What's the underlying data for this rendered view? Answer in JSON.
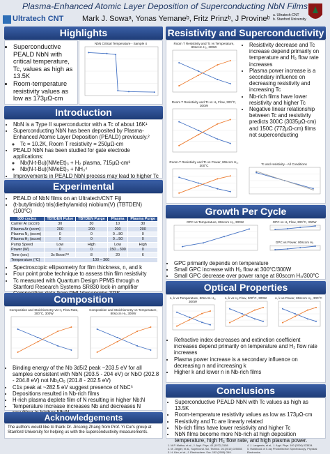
{
  "header": {
    "title": "Plasma-Enhanced Atomic Layer Deposition of Superconducting NbN Films",
    "logo": "Ultratech CNT",
    "authors": "Mark J. Sowaᵃ, Yonas Yemaneᵇ, Fritz Prinzᵇ, J Provineᵇ",
    "affiliations": [
      "a. Ultratech-CNT",
      "b. Stanford University"
    ]
  },
  "highlights": {
    "heading": "Highlights",
    "bullets": [
      "Superconductive PEALD NbN with critical temperature, Tc, values as high as 13.5K",
      "Room-temperature resistivity values as low as 173μΩ-cm"
    ],
    "chart": {
      "title": "NbN Critical Temperature - Sample 4"
    }
  },
  "introduction": {
    "heading": "Introduction",
    "bullets": [
      {
        "text": "NbN is a Type II superconductor with a Tc of about 16K¹"
      },
      {
        "text": "Superconducting NbN has been deposited by Plasma-Enhanced Atomic Layer Deposition (PEALD) previously.²",
        "sub": [
          "Tc = 10.2K, Room T resistivity = 250μΩ-cm"
        ]
      },
      {
        "text": "PEALD NbN has been studied for gate electrode applications:",
        "sub": [
          "Nb(N-t-Bu)(NMeEt)₃ + H₂ plasma, 715μΩ-cm³",
          "Nb(N-t-Bu)(NMeEt)₃ + NH₃⁴"
        ]
      },
      {
        "text": "Improvements in PEALD NbN process may lead to higher Tc and lower resistivity values"
      }
    ]
  },
  "experimental": {
    "heading": "Experimental",
    "intro": [
      "PEALD of NbN films on an Ultratech/CNT Fiji",
      "(t-butylimido) tris(diethylamido) niobium(V) (TBTDEN) (100°C)"
    ],
    "table": {
      "header": [
        "500 cycles",
        "TBTDEN Pulse",
        "TBTDEN Purge",
        "Plasma",
        "Plasma Purge"
      ],
      "rows": [
        [
          "Carrier Ar (sccm)",
          "30",
          "30",
          "10",
          "30"
        ],
        [
          "Plasma Ar (sccm)",
          "200",
          "200",
          "200",
          "200"
        ],
        [
          "Plasma N₂ (sccm)",
          "0",
          "0",
          "0→80",
          "0"
        ],
        [
          "Plasma H₂ (sccm)",
          "0",
          "0",
          "0→50",
          "0"
        ],
        [
          "Pump Speed",
          "Low",
          "High",
          "Low",
          "High"
        ],
        [
          "Power (W)",
          "0",
          "0",
          "150→300",
          "0"
        ],
        [
          "Time (sec)",
          "3x Boost™",
          "8",
          "20",
          "6"
        ],
        [
          "Temperature (°C)",
          "100 – 300"
        ]
      ]
    },
    "bullets": [
      "Spectroscopic ellipsometry for film thickness, n, and k",
      "Four point probe technique to assess thin film resistivity",
      "Tc measured with Quantum Design PPMS through a Stanford Research Systems SR830 lock-in amplifier",
      "Composition data from PHI Versaprobe XPS"
    ]
  },
  "composition": {
    "heading": "Composition",
    "charts": [
      {
        "title": "Composition and Stoichiometry vs H₂ Flow Rate, 300°C, 300W"
      },
      {
        "title": "Composition and Stoichiometry vs Temperature, 80sccm H₂, 300W"
      }
    ],
    "bullets": [
      "Binding energy of the Nb 3d5/2 peak ~203.5 eV for all samples consistent with NbN (203.5 - 204 eV) or NbO (202.8 - 204.8 eV) not Nb₂O₅ (201.8 - 202.5 eV)",
      "C1s peak at ~282.5 eV suggest presence of NbC⁵",
      "Depositions resulted in Nb-rich films",
      "H-rich plasma deplete film of N resulting in higher Nb:N",
      "Temperature increase increases Nb and decreases N resulting in higher Nb:N"
    ]
  },
  "acknowledgements": {
    "heading": "Acknowledgements",
    "text": "The authors would like to thank Dr. Jinsong Zhang from Prof. Yi Cui's group at Stanford University for helping us with the superconductivity measurements."
  },
  "resistivity": {
    "heading": "Resistivity and Superconductivity",
    "charts": [
      {
        "title": "Room T Resistivity and Tc vs Temperature, 80sccm H₂, 300W"
      },
      {
        "title": "Room T Resistivity and Tc vs H₂ Flow, 300°C, 300W"
      },
      {
        "title": "Room-T Resistivity and Tc vs Power, 80sccm H₂, 300°C"
      },
      {
        "title": "Tc and resistivity - All Conditions"
      }
    ],
    "bullets": [
      "Resistivity decrease and Tc increase depend primarily on temperature and H₂ flow rate increases",
      "Plasma power increase is a secondary influence on decreasing resistivity and increasing Tc",
      "Nb-rich films have lower resistivity and higher Tc",
      "Negative linear relationship between Tc and resistivity predicts 300C (3035μΩ-cm) and 150C (772μΩ-cm) films not superconducting"
    ]
  },
  "growth": {
    "heading": "Growth Per Cycle",
    "charts": [
      {
        "title": "GPC vs Temperature, 80sccm H₂, 300W"
      },
      {
        "title": "GPC vs H₂ Flow, 300°C, 300W"
      },
      {
        "title": "GPC vs Power, 80sccm H₂"
      }
    ],
    "bullets": [
      "GPC primarily depends on temperature",
      "Small GPC increase with H₂ flow at 300°C/300W",
      "Small GPC decrease over power range at 80sccm H₂/300°C"
    ]
  },
  "optical": {
    "heading": "Optical Properties",
    "charts": [
      {
        "title": "n, k vs Temperature, 80sccm H₂, 300W"
      },
      {
        "title": "n, k vs H₂ Flow, 300°C, 300W"
      },
      {
        "title": "n, k vs Power, 80sccm H₂, 300°C"
      }
    ],
    "bullets": [
      "Refractive index decreases and extinction coefficient increases depend primarily on temperature and H₂ flow rate increases",
      "Plasma power increase is a secondary influence on decreasing n and increasing k",
      "Higher k and lower n in Nb-rich films"
    ]
  },
  "conclusions": {
    "heading": "Conclusions",
    "bullets": [
      "Superconductive PEALD NbN with Tc values as high as 13.5K",
      "Room-temperature resistivity values as low as 173μΩ-cm",
      "Resistivity and Tc are linearly related",
      "Nb-rich films have lower resistivity and higher Tc",
      "NbN films become more Nb-rich at high deposition temperature, high H₂ flow rate, and high plasma power."
    ],
    "references": [
      "1. M.P. Mathur, et al., J. Appl. Phys. 43 (1972) 3158.",
      "2. M. Ziegler, et al., Supercond. Sci. Technol. 26 (2013) 025008.",
      "3. H. Kim, et al., J. Electrochem. Soc. 152 (2005) G49.",
      "4. J. Langereis, et al., J. Appl. Phys. 100 (2006) 023534.",
      "5. Handbook of X-ray Photoelectron Spectroscopy, Physical Electronics."
    ]
  }
}
